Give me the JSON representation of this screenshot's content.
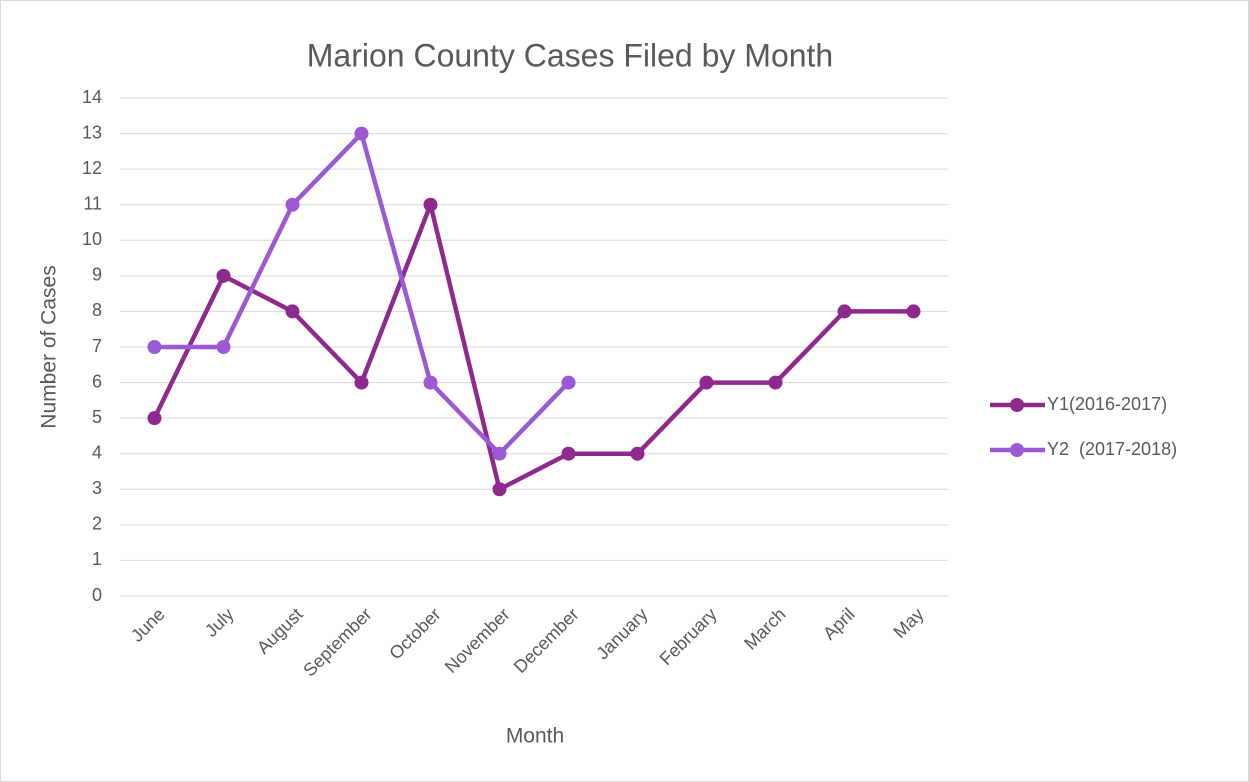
{
  "chart_data": {
    "type": "line",
    "title": "Marion County Cases Filed by Month",
    "xlabel": "Month",
    "ylabel": "Number of Cases",
    "categories": [
      "June",
      "July",
      "August",
      "September",
      "October",
      "November",
      "December",
      "January",
      "February",
      "March",
      "April",
      "May"
    ],
    "series": [
      {
        "name": "Y1(2016-2017)",
        "color": "#8e2a8e",
        "values": [
          5,
          9,
          8,
          6,
          11,
          3,
          4,
          4,
          6,
          6,
          8,
          8
        ]
      },
      {
        "name": "Y2  (2017-2018)",
        "color": "#9b59d6",
        "values": [
          7,
          7,
          11,
          13,
          6,
          4,
          6,
          null,
          null,
          null,
          null,
          null
        ]
      }
    ],
    "ylim": [
      0,
      14
    ],
    "yticks": [
      0,
      1,
      2,
      3,
      4,
      5,
      6,
      7,
      8,
      9,
      10,
      11,
      12,
      13,
      14
    ],
    "grid": true,
    "legend": "right"
  }
}
